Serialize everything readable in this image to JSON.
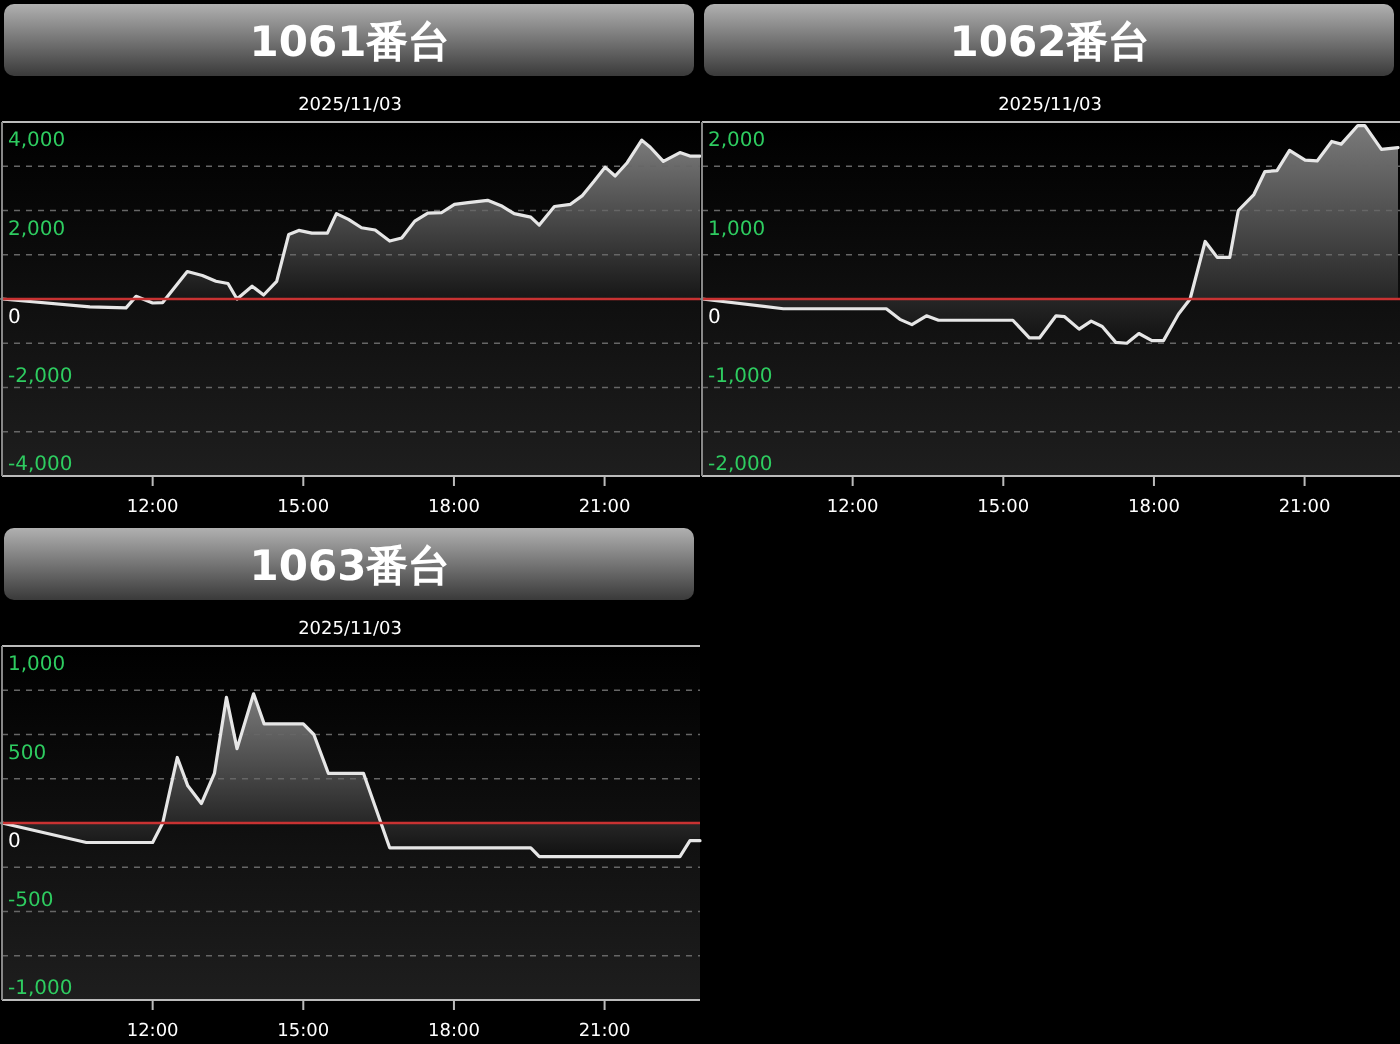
{
  "chart_data": [
    {
      "type": "area",
      "title": "1061番台",
      "subtitle": "2025/11/03",
      "grid": "y",
      "x": [
        9.0,
        10.75,
        11.47,
        11.67,
        12.0,
        12.2,
        12.69,
        12.99,
        13.26,
        13.5,
        13.68,
        13.98,
        14.21,
        14.47,
        14.71,
        14.91,
        15.17,
        15.48,
        15.66,
        15.9,
        16.16,
        16.43,
        16.72,
        16.96,
        17.22,
        17.48,
        17.75,
        18.01,
        18.28,
        18.67,
        18.94,
        19.2,
        19.53,
        19.7,
        20.0,
        20.32,
        20.55,
        20.79,
        21.01,
        21.21,
        21.45,
        21.74,
        21.91,
        22.17,
        22.5,
        22.7,
        22.9
      ],
      "series": [
        {
          "color": "#e6e6e6",
          "values": [
            0,
            -180,
            -200,
            60,
            -90,
            -80,
            620,
            530,
            400,
            350,
            0,
            290,
            90,
            400,
            1460,
            1550,
            1490,
            1490,
            1930,
            1800,
            1610,
            1560,
            1310,
            1380,
            1760,
            1940,
            1950,
            2140,
            2180,
            2230,
            2110,
            1930,
            1850,
            1670,
            2090,
            2140,
            2330,
            2660,
            2980,
            2780,
            3080,
            3590,
            3430,
            3110,
            3310,
            3230,
            3230
          ]
        }
      ],
      "xlim": [
        9,
        22.9
      ],
      "ylim": [
        -4000,
        4000
      ],
      "xticks": [
        {
          "value": 12,
          "label": "12:00"
        },
        {
          "value": 15,
          "label": "15:00"
        },
        {
          "value": 18,
          "label": "18:00"
        },
        {
          "value": 21,
          "label": "21:00"
        }
      ],
      "yticks": [
        {
          "value": -4000,
          "label": "-4,000"
        },
        {
          "value": -3000,
          "label": null
        },
        {
          "value": -2000,
          "label": "-2,000"
        },
        {
          "value": -1000,
          "label": null
        },
        {
          "value": 0,
          "label": "0"
        },
        {
          "value": 1000,
          "label": null
        },
        {
          "value": 2000,
          "label": "2,000"
        },
        {
          "value": 3000,
          "label": null
        },
        {
          "value": 4000,
          "label": "4,000"
        }
      ],
      "ref_lines": [
        {
          "axis": "y",
          "value": 0,
          "color": "#c83232"
        }
      ]
    },
    {
      "type": "area",
      "title": "1062番台",
      "subtitle": "2025/11/03",
      "grid": "y",
      "x": [
        9.0,
        10.62,
        12.67,
        12.94,
        13.18,
        13.47,
        13.71,
        15.19,
        15.52,
        15.72,
        16.05,
        16.22,
        16.51,
        16.75,
        16.97,
        17.24,
        17.46,
        17.7,
        17.96,
        18.19,
        18.49,
        18.72,
        19.02,
        19.26,
        19.51,
        19.68,
        19.99,
        20.21,
        20.45,
        20.7,
        21.01,
        21.25,
        21.54,
        21.73,
        22.06,
        22.2,
        22.53,
        22.86
      ],
      "series": [
        {
          "color": "#e6e6e6",
          "values": [
            0,
            -110,
            -110,
            -230,
            -290,
            -190,
            -240,
            -240,
            -440,
            -440,
            -190,
            -200,
            -340,
            -250,
            -310,
            -490,
            -500,
            -390,
            -470,
            -470,
            -170,
            0,
            650,
            470,
            470,
            1000,
            1180,
            1440,
            1450,
            1680,
            1570,
            1560,
            1780,
            1750,
            1960,
            1960,
            1690,
            1710
          ]
        }
      ],
      "xlim": [
        9,
        22.9
      ],
      "ylim": [
        -2000,
        2000
      ],
      "xticks": [
        {
          "value": 12,
          "label": "12:00"
        },
        {
          "value": 15,
          "label": "15:00"
        },
        {
          "value": 18,
          "label": "18:00"
        },
        {
          "value": 21,
          "label": "21:00"
        }
      ],
      "yticks": [
        {
          "value": -2000,
          "label": "-2,000"
        },
        {
          "value": -1500,
          "label": null
        },
        {
          "value": -1000,
          "label": "-1,000"
        },
        {
          "value": -500,
          "label": null
        },
        {
          "value": 0,
          "label": "0"
        },
        {
          "value": 500,
          "label": null
        },
        {
          "value": 1000,
          "label": "1,000"
        },
        {
          "value": 1500,
          "label": null
        },
        {
          "value": 2000,
          "label": "2,000"
        }
      ],
      "ref_lines": [
        {
          "axis": "y",
          "value": 0,
          "color": "#c83232"
        }
      ]
    },
    {
      "type": "area",
      "title": "1063番台",
      "subtitle": "2025/11/03",
      "grid": "y",
      "x": [
        9.0,
        10.68,
        12.0,
        12.2,
        12.49,
        12.7,
        12.97,
        13.23,
        13.47,
        13.68,
        14.01,
        14.22,
        15.0,
        15.21,
        15.5,
        16.2,
        16.72,
        19.53,
        19.7,
        22.5,
        22.7,
        22.9
      ],
      "series": [
        {
          "color": "#e6e6e6",
          "values": [
            0,
            -110,
            -110,
            0,
            370,
            210,
            110,
            280,
            710,
            420,
            730,
            560,
            560,
            500,
            280,
            280,
            -140,
            -140,
            -190,
            -190,
            -100,
            -100
          ]
        }
      ],
      "xlim": [
        9,
        22.9
      ],
      "ylim": [
        -1000,
        1000
      ],
      "xticks": [
        {
          "value": 12,
          "label": "12:00"
        },
        {
          "value": 15,
          "label": "15:00"
        },
        {
          "value": 18,
          "label": "18:00"
        },
        {
          "value": 21,
          "label": "21:00"
        }
      ],
      "yticks": [
        {
          "value": -1000,
          "label": "-1,000"
        },
        {
          "value": -750,
          "label": null
        },
        {
          "value": -500,
          "label": "-500"
        },
        {
          "value": -250,
          "label": null
        },
        {
          "value": 0,
          "label": "0"
        },
        {
          "value": 250,
          "label": null
        },
        {
          "value": 500,
          "label": "500"
        },
        {
          "value": 750,
          "label": null
        },
        {
          "value": 1000,
          "label": "1,000"
        }
      ],
      "ref_lines": [
        {
          "axis": "y",
          "value": 0,
          "color": "#c83232"
        }
      ]
    }
  ]
}
